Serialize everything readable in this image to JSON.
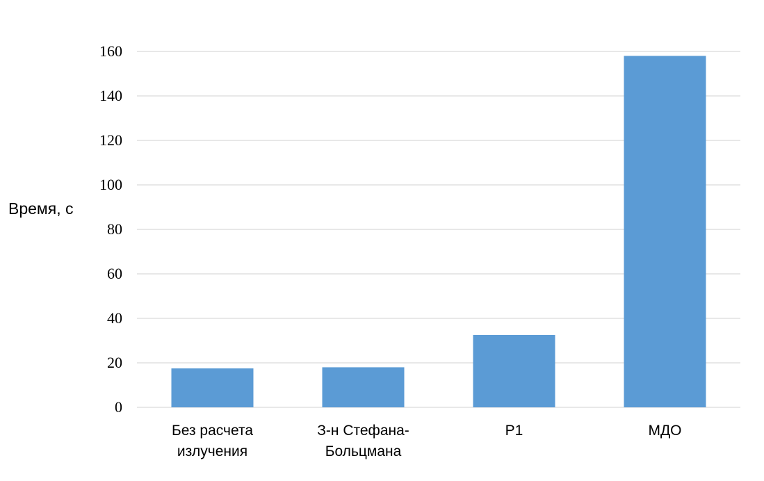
{
  "chart_data": {
    "type": "bar",
    "title": "",
    "xlabel": "",
    "ylabel": "Время, с",
    "categories": [
      [
        "Без расчета",
        "излучения"
      ],
      [
        "З-н Стефана-",
        "Больцмана"
      ],
      [
        "P1"
      ],
      [
        "МДО"
      ]
    ],
    "values": [
      17.5,
      18,
      32.5,
      158
    ],
    "ylim": [
      0,
      160
    ],
    "yticks": [
      "0",
      "20",
      "40",
      "60",
      "80",
      "100",
      "120",
      "140",
      "160"
    ],
    "grid": true,
    "legend": "none",
    "bar_color": "#5b9bd5",
    "grid_color": "#d9d9d9"
  }
}
